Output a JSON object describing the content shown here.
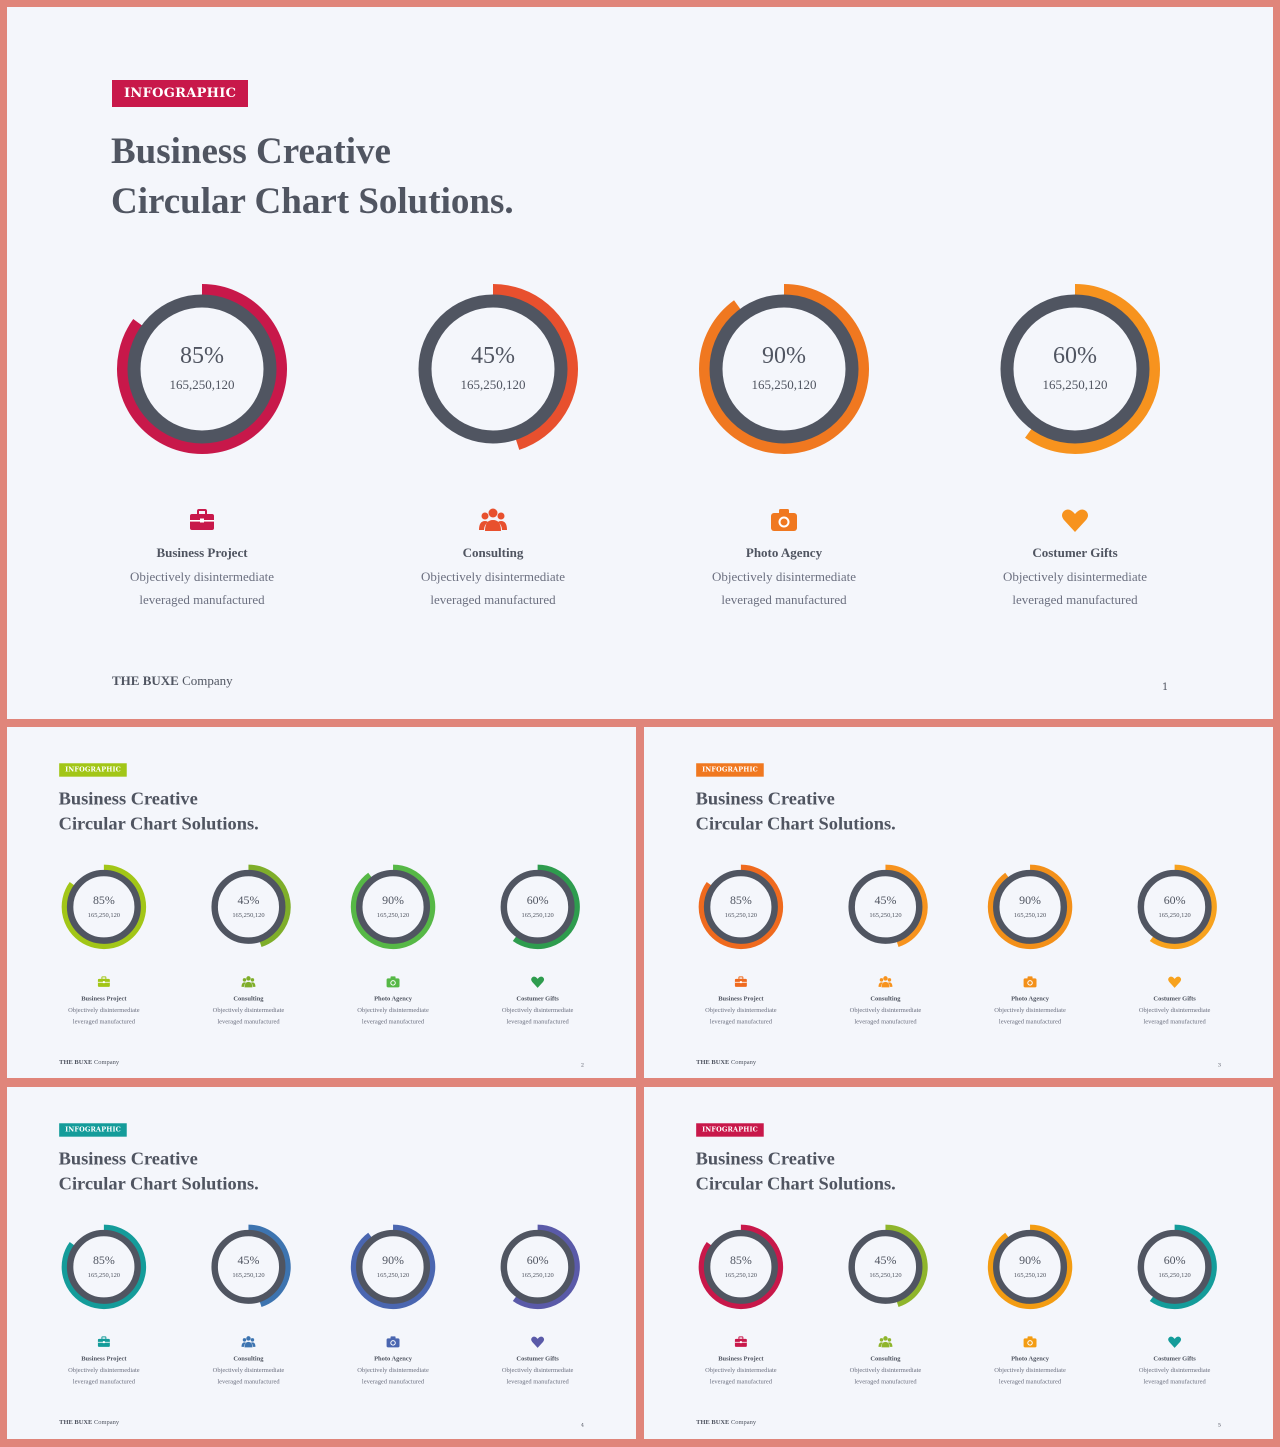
{
  "company": {
    "bold": "THE BUXE",
    "rest": " Company"
  },
  "slides": [
    {
      "badge": "INFOGRAPHIC",
      "badge_color": "#c8184a",
      "title_line1": "Business Creative",
      "title_line2": "Circular Chart Solutions.",
      "page": "1",
      "rings": [
        {
          "percent": "85%",
          "value": 85,
          "number": "165,250,120",
          "color": "#c8184a"
        },
        {
          "percent": "45%",
          "value": 45,
          "number": "165,250,120",
          "color": "#e8502e"
        },
        {
          "percent": "90%",
          "value": 90,
          "number": "165,250,120",
          "color": "#f07820"
        },
        {
          "percent": "60%",
          "value": 60,
          "number": "165,250,120",
          "color": "#f7931e"
        }
      ],
      "items": [
        {
          "name": "Business Project",
          "line1": "Objectively disintermediate",
          "line2": "leveraged manufactured",
          "icon": "briefcase-icon",
          "color": "#c8184a"
        },
        {
          "name": "Consulting",
          "line1": "Objectively disintermediate",
          "line2": "leveraged manufactured",
          "icon": "users-icon",
          "color": "#e8502e"
        },
        {
          "name": "Photo Agency",
          "line1": "Objectively disintermediate",
          "line2": "leveraged manufactured",
          "icon": "camera-icon",
          "color": "#f07820"
        },
        {
          "name": "Costumer Gifts",
          "line1": "Objectively disintermediate",
          "line2": "leveraged manufactured",
          "icon": "heart-icon",
          "color": "#f7931e"
        }
      ]
    },
    {
      "badge": "INFOGRAPHIC",
      "badge_color": "#a2c617",
      "title_line1": "Business Creative",
      "title_line2": "Circular Chart Solutions.",
      "page": "2",
      "rings": [
        {
          "percent": "85%",
          "value": 85,
          "number": "165,250,120",
          "color": "#a2c617"
        },
        {
          "percent": "45%",
          "value": 45,
          "number": "165,250,120",
          "color": "#7fae2a"
        },
        {
          "percent": "90%",
          "value": 90,
          "number": "165,250,120",
          "color": "#56b846"
        },
        {
          "percent": "60%",
          "value": 60,
          "number": "165,250,120",
          "color": "#2e9c4e"
        }
      ],
      "items": [
        {
          "name": "Business Project",
          "line1": "Objectively disintermediate",
          "line2": "leveraged manufactured",
          "icon": "briefcase-icon",
          "color": "#a2c617"
        },
        {
          "name": "Consulting",
          "line1": "Objectively disintermediate",
          "line2": "leveraged manufactured",
          "icon": "users-icon",
          "color": "#7fae2a"
        },
        {
          "name": "Photo Agency",
          "line1": "Objectively disintermediate",
          "line2": "leveraged manufactured",
          "icon": "camera-icon",
          "color": "#56b846"
        },
        {
          "name": "Costumer Gifts",
          "line1": "Objectively disintermediate",
          "line2": "leveraged manufactured",
          "icon": "heart-icon",
          "color": "#2e9c4e"
        }
      ]
    },
    {
      "badge": "INFOGRAPHIC",
      "badge_color": "#f07820",
      "title_line1": "Business Creative",
      "title_line2": "Circular Chart Solutions.",
      "page": "3",
      "rings": [
        {
          "percent": "85%",
          "value": 85,
          "number": "165,250,120",
          "color": "#ef6a1e"
        },
        {
          "percent": "45%",
          "value": 45,
          "number": "165,250,120",
          "color": "#f7931e"
        },
        {
          "percent": "90%",
          "value": 90,
          "number": "165,250,120",
          "color": "#f39019"
        },
        {
          "percent": "60%",
          "value": 60,
          "number": "165,250,120",
          "color": "#f7a21e"
        }
      ],
      "items": [
        {
          "name": "Business Project",
          "line1": "Objectively disintermediate",
          "line2": "leveraged manufactured",
          "icon": "briefcase-icon",
          "color": "#ef6a1e"
        },
        {
          "name": "Consulting",
          "line1": "Objectively disintermediate",
          "line2": "leveraged manufactured",
          "icon": "users-icon",
          "color": "#f7931e"
        },
        {
          "name": "Photo Agency",
          "line1": "Objectively disintermediate",
          "line2": "leveraged manufactured",
          "icon": "camera-icon",
          "color": "#f39019"
        },
        {
          "name": "Costumer Gifts",
          "line1": "Objectively disintermediate",
          "line2": "leveraged manufactured",
          "icon": "heart-icon",
          "color": "#f7a21e"
        }
      ]
    },
    {
      "badge": "INFOGRAPHIC",
      "badge_color": "#149c9a",
      "title_line1": "Business Creative",
      "title_line2": "Circular Chart Solutions.",
      "page": "4",
      "rings": [
        {
          "percent": "85%",
          "value": 85,
          "number": "165,250,120",
          "color": "#149c9a"
        },
        {
          "percent": "45%",
          "value": 45,
          "number": "165,250,120",
          "color": "#3d74b0"
        },
        {
          "percent": "90%",
          "value": 90,
          "number": "165,250,120",
          "color": "#4a66b0"
        },
        {
          "percent": "60%",
          "value": 60,
          "number": "165,250,120",
          "color": "#5a5aa8"
        }
      ],
      "items": [
        {
          "name": "Business Project",
          "line1": "Objectively disintermediate",
          "line2": "leveraged manufactured",
          "icon": "briefcase-icon",
          "color": "#149c9a"
        },
        {
          "name": "Consulting",
          "line1": "Objectively disintermediate",
          "line2": "leveraged manufactured",
          "icon": "users-icon",
          "color": "#3d74b0"
        },
        {
          "name": "Photo Agency",
          "line1": "Objectively disintermediate",
          "line2": "leveraged manufactured",
          "icon": "camera-icon",
          "color": "#4a66b0"
        },
        {
          "name": "Costumer Gifts",
          "line1": "Objectively disintermediate",
          "line2": "leveraged manufactured",
          "icon": "heart-icon",
          "color": "#5a5aa8"
        }
      ]
    },
    {
      "badge": "INFOGRAPHIC",
      "badge_color": "#c8184a",
      "title_line1": "Business Creative",
      "title_line2": "Circular Chart Solutions.",
      "page": "5",
      "rings": [
        {
          "percent": "85%",
          "value": 85,
          "number": "165,250,120",
          "color": "#c8184a"
        },
        {
          "percent": "45%",
          "value": 45,
          "number": "165,250,120",
          "color": "#8fb52c"
        },
        {
          "percent": "90%",
          "value": 90,
          "number": "165,250,120",
          "color": "#f39c12"
        },
        {
          "percent": "60%",
          "value": 60,
          "number": "165,250,120",
          "color": "#149c9a"
        }
      ],
      "items": [
        {
          "name": "Business Project",
          "line1": "Objectively disintermediate",
          "line2": "leveraged manufactured",
          "icon": "briefcase-icon",
          "color": "#c8184a"
        },
        {
          "name": "Consulting",
          "line1": "Objectively disintermediate",
          "line2": "leveraged manufactured",
          "icon": "users-icon",
          "color": "#8fb52c"
        },
        {
          "name": "Photo Agency",
          "line1": "Objectively disintermediate",
          "line2": "leveraged manufactured",
          "icon": "camera-icon",
          "color": "#f39c12"
        },
        {
          "name": "Costumer Gifts",
          "line1": "Objectively disintermediate",
          "line2": "leveraged manufactured",
          "icon": "heart-icon",
          "color": "#149c9a"
        }
      ]
    }
  ]
}
